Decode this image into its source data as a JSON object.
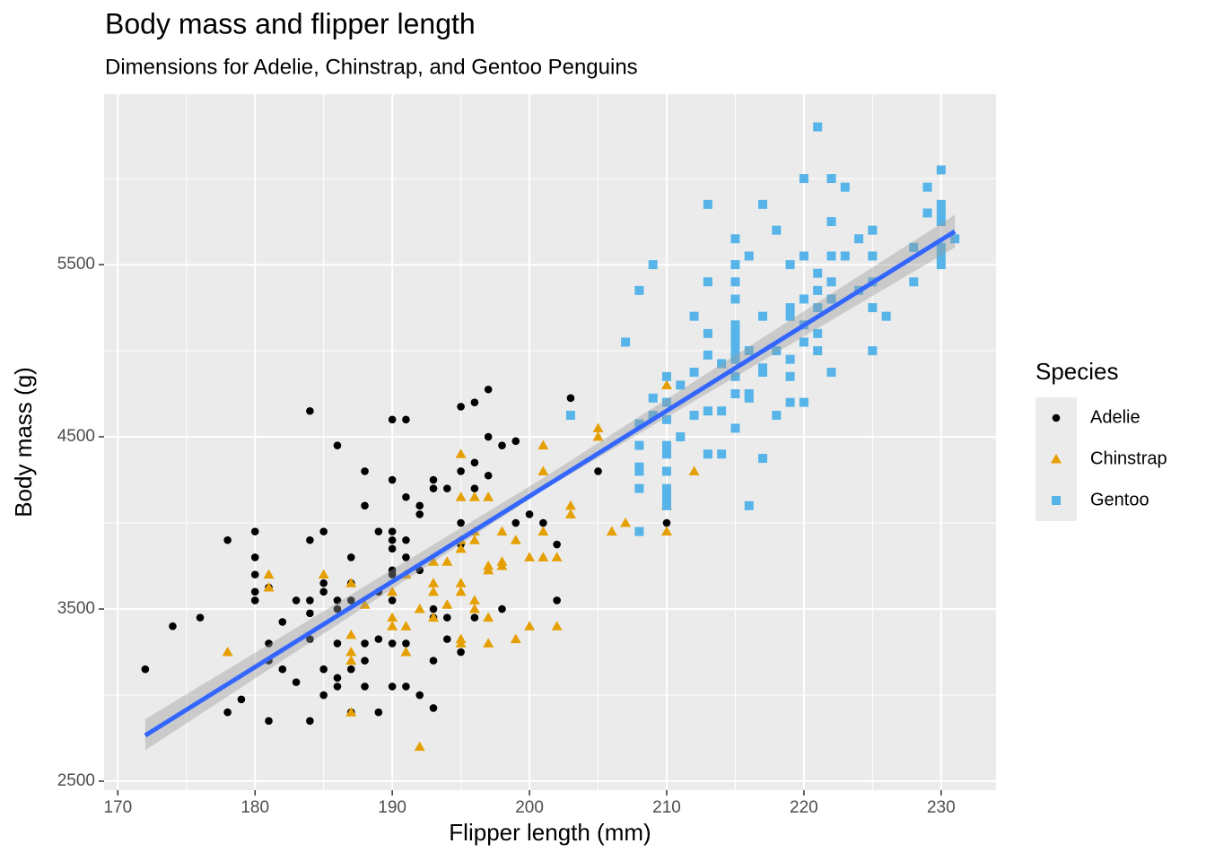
{
  "chart_data": {
    "type": "scatter",
    "title": "Body mass and flipper length",
    "subtitle": "Dimensions for Adelie, Chinstrap, and Gentoo Penguins",
    "x_label": "Flipper length (mm)",
    "y_label": "Body mass (g)",
    "legend_title": "Species",
    "legend_position": "right",
    "grid": true,
    "xlim": [
      169,
      234
    ],
    "ylim": [
      2448,
      6490
    ],
    "xticks": [
      170,
      180,
      190,
      200,
      210,
      220,
      230
    ],
    "yticks": [
      2500,
      3500,
      4500,
      5500
    ],
    "x_minor_grid": [
      175,
      185,
      195,
      205,
      215,
      225
    ],
    "y_minor_grid": [
      3000,
      4000,
      5000,
      6000
    ],
    "series": [
      {
        "name": "Adelie",
        "color": "#000000",
        "shape": "circle",
        "x": [
          172,
          174,
          176,
          178,
          178,
          179,
          180,
          180,
          180,
          180,
          180,
          181,
          181,
          181,
          181,
          182,
          182,
          183,
          183,
          184,
          184,
          184,
          184,
          184,
          184,
          185,
          185,
          185,
          185,
          185,
          186,
          186,
          186,
          186,
          186,
          186,
          187,
          187,
          187,
          187,
          187,
          188,
          188,
          188,
          188,
          188,
          189,
          189,
          189,
          189,
          190,
          190,
          190,
          190,
          190,
          190,
          190,
          190,
          190,
          190,
          191,
          191,
          191,
          191,
          191,
          191,
          192,
          192,
          192,
          192,
          193,
          193,
          193,
          193,
          193,
          193,
          194,
          194,
          194,
          195,
          195,
          195,
          195,
          195,
          196,
          196,
          196,
          196,
          197,
          197,
          197,
          198,
          198,
          199,
          199,
          200,
          201,
          202,
          202,
          203,
          205,
          210
        ],
        "y": [
          3150,
          3400,
          3450,
          3900,
          2900,
          2975,
          3950,
          3800,
          3700,
          3600,
          3550,
          3625,
          3300,
          3200,
          2850,
          3425,
          3150,
          3550,
          3075,
          4650,
          3900,
          3550,
          3475,
          3325,
          2850,
          3950,
          3650,
          3600,
          3150,
          3000,
          4450,
          3550,
          3500,
          3300,
          3100,
          3050,
          3800,
          3650,
          3550,
          3150,
          2900,
          4300,
          4100,
          3300,
          3200,
          3050,
          3950,
          3600,
          3325,
          2900,
          4600,
          4250,
          3950,
          3900,
          3850,
          3725,
          3700,
          3550,
          3300,
          3050,
          4600,
          4150,
          3900,
          3800,
          3300,
          3050,
          4100,
          4050,
          3725,
          3000,
          4250,
          4200,
          3500,
          3450,
          3200,
          2925,
          4200,
          3450,
          3325,
          4675,
          4300,
          4000,
          3875,
          3250,
          4700,
          4350,
          4200,
          3450,
          4775,
          4500,
          4275,
          4450,
          3500,
          4475,
          4000,
          4050,
          4000,
          3875,
          3550,
          4725,
          4300,
          4000
        ]
      },
      {
        "name": "Chinstrap",
        "color": "#E69F00",
        "shape": "triangle",
        "x": [
          178,
          181,
          181,
          185,
          187,
          187,
          187,
          187,
          187,
          188,
          190,
          190,
          190,
          191,
          191,
          191,
          192,
          192,
          193,
          193,
          193,
          193,
          194,
          194,
          195,
          195,
          195,
          195,
          195,
          195,
          195,
          195,
          196,
          196,
          196,
          196,
          196,
          197,
          197,
          197,
          197,
          197,
          198,
          198,
          198,
          199,
          199,
          200,
          200,
          201,
          201,
          201,
          201,
          202,
          202,
          203,
          203,
          205,
          205,
          206,
          207,
          210,
          210,
          210,
          212
        ],
        "y": [
          3250,
          3700,
          3625,
          3700,
          3650,
          3350,
          3250,
          3200,
          2900,
          3525,
          3450,
          3400,
          3600,
          3250,
          3400,
          3700,
          3500,
          2700,
          3650,
          3600,
          3775,
          3450,
          3775,
          3525,
          4400,
          4150,
          3650,
          3600,
          3325,
          3300,
          3900,
          3850,
          4150,
          3950,
          3550,
          3500,
          3900,
          3750,
          3725,
          3450,
          3300,
          4150,
          3950,
          3775,
          3750,
          3900,
          3325,
          3800,
          3400,
          4450,
          4300,
          3950,
          3800,
          3800,
          3400,
          4100,
          4050,
          4550,
          4500,
          3950,
          4000,
          4800,
          4100,
          3950,
          4300
        ]
      },
      {
        "name": "Gentoo",
        "color": "#56B4E9",
        "shape": "square",
        "x": [
          203,
          207,
          208,
          208,
          208,
          208,
          208,
          208,
          208,
          209,
          209,
          209,
          210,
          210,
          210,
          210,
          210,
          210,
          210,
          210,
          210,
          211,
          211,
          212,
          212,
          212,
          213,
          213,
          213,
          213,
          213,
          213,
          214,
          214,
          214,
          215,
          215,
          215,
          215,
          215,
          215,
          215,
          215,
          215,
          215,
          215,
          215,
          216,
          216,
          216,
          216,
          216,
          217,
          217,
          217,
          217,
          217,
          218,
          218,
          218,
          219,
          219,
          219,
          219,
          219,
          219,
          220,
          220,
          220,
          220,
          220,
          220,
          221,
          221,
          221,
          221,
          221,
          221,
          222,
          222,
          222,
          222,
          222,
          222,
          223,
          223,
          224,
          224,
          225,
          225,
          225,
          225,
          225,
          226,
          228,
          228,
          229,
          229,
          230,
          230,
          230,
          230,
          230,
          230,
          230,
          231
        ],
        "y": [
          4625,
          5050,
          5350,
          4575,
          4450,
          4300,
          4325,
          4200,
          3950,
          5500,
          4625,
          4725,
          4850,
          4700,
          4600,
          4450,
          4400,
          4300,
          4200,
          4150,
          4100,
          4500,
          4800,
          4875,
          4625,
          5200,
          4975,
          5100,
          5400,
          5850,
          4650,
          4400,
          4400,
          4650,
          4925,
          5650,
          5500,
          5400,
          5300,
          5150,
          5100,
          5050,
          5000,
          4950,
          4850,
          4750,
          4550,
          5000,
          5550,
          4100,
          4725,
          4750,
          5850,
          5200,
          4900,
          4875,
          4375,
          4625,
          5700,
          5000,
          5500,
          5250,
          5200,
          4950,
          4850,
          4700,
          6000,
          5550,
          5300,
          5150,
          5050,
          4700,
          6300,
          5450,
          5350,
          5250,
          5100,
          5000,
          6000,
          5750,
          5550,
          5400,
          5300,
          4875,
          5950,
          5550,
          5650,
          5350,
          5700,
          5550,
          5400,
          5250,
          5000,
          5200,
          5600,
          5400,
          5950,
          5800,
          6050,
          5850,
          5800,
          5750,
          5600,
          5550,
          5500,
          5650
        ]
      }
    ],
    "trend": {
      "color": "#3366FF",
      "x": [
        172,
        231
      ],
      "y": [
        2766,
        5693
      ]
    },
    "band": {
      "color": "#999999",
      "x": [
        172,
        201,
        231
      ],
      "lower": [
        2680,
        4190,
        5600
      ],
      "upper": [
        2860,
        4260,
        5790
      ]
    }
  }
}
